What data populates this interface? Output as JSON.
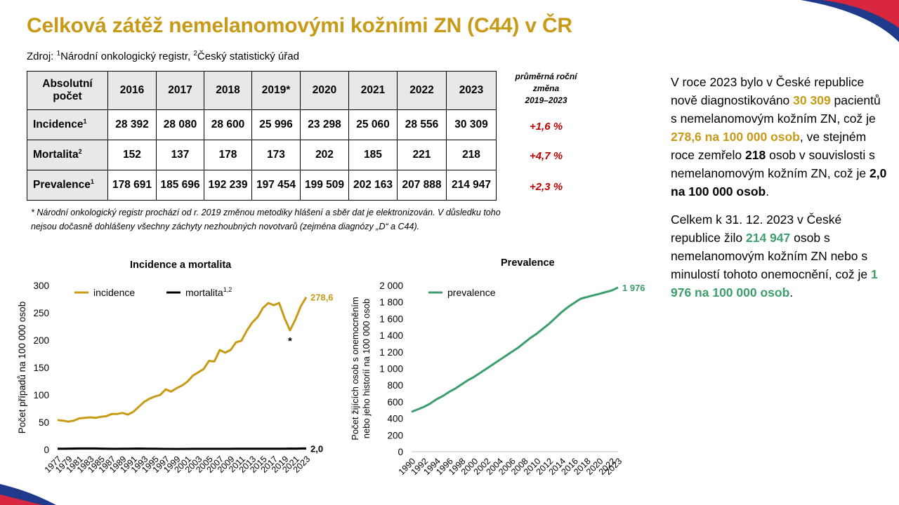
{
  "title": "Celková zátěž nemelanomovými kožními ZN (C44) v ČR",
  "source": {
    "prefix": "Zdroj: ",
    "sup1": "1",
    "text1": "Národní onkologický registr, ",
    "sup2": "2",
    "text2": "Český statistický úřad"
  },
  "table": {
    "corner_label_line1": "Absolutní",
    "corner_label_line2": "počet",
    "years": [
      "2016",
      "2017",
      "2018",
      "2019*",
      "2020",
      "2021",
      "2022",
      "2023"
    ],
    "rows": [
      {
        "label": "Incidence",
        "sup": "1",
        "values": [
          "28 392",
          "28 080",
          "28 600",
          "25 996",
          "23 298",
          "25 060",
          "28 556",
          "30 309"
        ],
        "change": "+1,6 %"
      },
      {
        "label": "Mortalita",
        "sup": "2",
        "values": [
          "152",
          "137",
          "178",
          "173",
          "202",
          "185",
          "221",
          "218"
        ],
        "change": "+4,7 %"
      },
      {
        "label": "Prevalence",
        "sup": "1",
        "values": [
          "178 691",
          "185 696",
          "192 239",
          "197 454",
          "199 509",
          "202 163",
          "207 888",
          "214 947"
        ],
        "change": "+2,3 %"
      }
    ],
    "change_header_line1": "průměrná roční",
    "change_header_line2": "změna",
    "change_header_line3": "2019–2023"
  },
  "footnote": "* Národní onkologický registr prochází od r. 2019 změnou metodiky hlášení a sběr dat je elektronizován. V důsledku toho nejsou dočasně dohlášeny všechny záchyty nezhoubných novotvarů (zejména diagnózy „D“ a C44).",
  "side_text": {
    "p1_a": "V roce 2023 bylo v České republice nově diagnostikováno ",
    "p1_b": "30 309",
    "p1_c": " pacientů s nemelanomovým kožním ZN, což je ",
    "p1_d": "278,6 na 100 000 osob",
    "p1_e": ", ve stejném roce zemřelo ",
    "p1_f": "218",
    "p1_g": " osob v souvislosti s nemelanomovým kožním ZN, což je ",
    "p1_h": "2,0 na 100 000 osob",
    "p1_i": ".",
    "p2_a": "Celkem k 31. 12. 2023 v České republice žilo ",
    "p2_b": "214 947",
    "p2_c": " osob s nemelanomovým kožním ZN nebo s minulostí tohoto onemocnění, což je ",
    "p2_d": "1 976 na 100 000 osob",
    "p2_e": "."
  },
  "colors": {
    "gold": "#C79A17",
    "green": "#3C9E6B",
    "black": "#000000",
    "red": "#C00000",
    "brand_blue": "#1F3A8A"
  },
  "chart_data": [
    {
      "type": "line",
      "title": "Incidence a mortalita",
      "ylabel": "Počet případů na 100 000 osob",
      "xlabel": "",
      "ylim": [
        0,
        300
      ],
      "yticks": [
        "0",
        "50",
        "100",
        "150",
        "200",
        "250",
        "300"
      ],
      "x": [
        1977,
        1978,
        1979,
        1980,
        1981,
        1982,
        1983,
        1984,
        1985,
        1986,
        1987,
        1988,
        1989,
        1990,
        1991,
        1992,
        1993,
        1994,
        1995,
        1996,
        1997,
        1998,
        1999,
        2000,
        2001,
        2002,
        2003,
        2004,
        2005,
        2006,
        2007,
        2008,
        2009,
        2010,
        2011,
        2012,
        2013,
        2014,
        2015,
        2016,
        2017,
        2018,
        2019,
        2020,
        2021,
        2022,
        2023
      ],
      "xticks": [
        "1977",
        "1979",
        "1981",
        "1983",
        "1985",
        "1987",
        "1989",
        "1991",
        "1993",
        "1995",
        "1997",
        "1999",
        "2001",
        "2003",
        "2005",
        "2007",
        "2009",
        "2011",
        "2013",
        "2015",
        "2017",
        "2019",
        "2021",
        "2023"
      ],
      "legend_position": "top",
      "series": [
        {
          "name": "incidence",
          "color": "#C79A17",
          "end_label": "278,6",
          "values": [
            54,
            53,
            51,
            53,
            57,
            58,
            59,
            58,
            60,
            61,
            65,
            65,
            67,
            64,
            69,
            78,
            87,
            93,
            97,
            100,
            110,
            106,
            112,
            117,
            124,
            135,
            141,
            147,
            162,
            161,
            182,
            177,
            182,
            196,
            199,
            217,
            232,
            242,
            259,
            268,
            264,
            268,
            240,
            218,
            238,
            262,
            278.6
          ]
        },
        {
          "name": "mortalita",
          "sup": "1,2",
          "color": "#000000",
          "end_label": "2,0",
          "values": [
            1.6,
            1.7,
            1.8,
            1.9,
            2.0,
            2.1,
            2.1,
            2.0,
            1.8,
            1.6,
            1.4,
            1.4,
            1.5,
            1.6,
            1.8,
            1.9,
            1.8,
            1.7,
            1.5,
            1.4,
            1.3,
            1.3,
            1.2,
            1.3,
            1.3,
            1.4,
            1.4,
            1.4,
            1.4,
            1.4,
            1.4,
            1.4,
            1.4,
            1.5,
            1.5,
            1.5,
            1.5,
            1.5,
            1.5,
            1.5,
            1.5,
            1.6,
            1.7,
            1.9,
            1.8,
            2.0,
            2.0
          ]
        }
      ],
      "annotation": {
        "text": "*",
        "year": 2020
      }
    },
    {
      "type": "line",
      "title": "Prevalence",
      "ylabel_line1": "Počet žijících osob s onemocněním",
      "ylabel_line2": "nebo jeho historií na 100 000 osob",
      "xlabel": "",
      "ylim": [
        0,
        2000
      ],
      "yticks": [
        "0",
        "200",
        "400",
        "600",
        "800",
        "1 000",
        "1 200",
        "1 400",
        "1 600",
        "1 800",
        "2 000"
      ],
      "x": [
        1990,
        1991,
        1992,
        1993,
        1994,
        1995,
        1996,
        1997,
        1998,
        1999,
        2000,
        2001,
        2002,
        2003,
        2004,
        2005,
        2006,
        2007,
        2008,
        2009,
        2010,
        2011,
        2012,
        2013,
        2014,
        2015,
        2016,
        2017,
        2018,
        2019,
        2020,
        2021,
        2022,
        2023
      ],
      "xticks": [
        "1990",
        "1992",
        "1994",
        "1996",
        "1998",
        "2000",
        "2002",
        "2004",
        "2006",
        "2008",
        "2010",
        "2012",
        "2014",
        "2016",
        "2018",
        "2020",
        "2022",
        "2023"
      ],
      "legend_position": "top-left",
      "series": [
        {
          "name": "prevalence",
          "color": "#3C9E6B",
          "end_label": "1 976",
          "values": [
            480,
            510,
            540,
            580,
            630,
            670,
            720,
            760,
            810,
            860,
            900,
            950,
            1000,
            1050,
            1100,
            1150,
            1200,
            1250,
            1310,
            1370,
            1420,
            1480,
            1540,
            1610,
            1680,
            1740,
            1790,
            1840,
            1860,
            1880,
            1900,
            1920,
            1940,
            1976
          ]
        }
      ]
    }
  ]
}
